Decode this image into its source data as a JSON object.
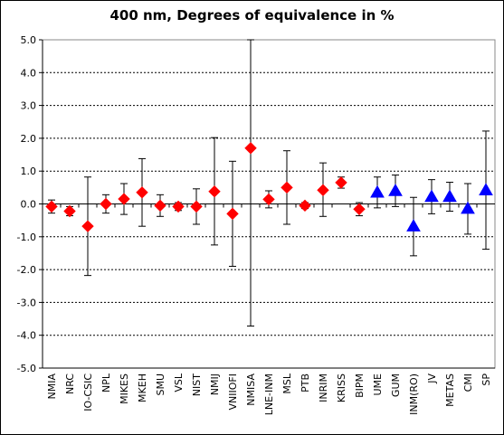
{
  "chart_data": {
    "type": "scatter",
    "title": "400 nm, Degrees of equivalence in %",
    "xlabel": "",
    "ylabel": "",
    "ylim": [
      -5.0,
      5.0
    ],
    "y_ticks": [
      "5.0",
      "4.0",
      "3.0",
      "2.0",
      "1.0",
      "0.0",
      "-1.0",
      "-2.0",
      "-3.0",
      "-4.0",
      "-5.0"
    ],
    "grid": "horizontal dashed",
    "legend": "none",
    "categories": [
      "NMIA",
      "NRC",
      "IO-CSIC",
      "NPL",
      "MIKES",
      "MKEH",
      "SMU",
      "VSL",
      "NIST",
      "NMIJ",
      "VNIIOFI",
      "NMISA",
      "LNE-INM",
      "MSL",
      "PTB",
      "INRIM",
      "KRISS",
      "BIPM",
      "UME",
      "GUM",
      "INM(RO)",
      "JV",
      "METAS",
      "CMI",
      "SP"
    ],
    "series": [
      {
        "marker": "diamond",
        "color": "#ff0000",
        "points": [
          {
            "x": "NMIA",
            "y": -0.08,
            "low": -0.28,
            "high": 0.12
          },
          {
            "x": "NRC",
            "y": -0.22,
            "low": -0.36,
            "high": -0.08
          },
          {
            "x": "IO-CSIC",
            "y": -0.68,
            "low": -2.18,
            "high": 0.82
          },
          {
            "x": "NPL",
            "y": 0.0,
            "low": -0.28,
            "high": 0.28
          },
          {
            "x": "MIKES",
            "y": 0.15,
            "low": -0.32,
            "high": 0.62
          },
          {
            "x": "MKEH",
            "y": 0.35,
            "low": -0.68,
            "high": 1.38
          },
          {
            "x": "SMU",
            "y": -0.05,
            "low": -0.38,
            "high": 0.28
          },
          {
            "x": "VSL",
            "y": -0.08,
            "low": -0.2,
            "high": 0.04
          },
          {
            "x": "NIST",
            "y": -0.08,
            "low": -0.62,
            "high": 0.46
          },
          {
            "x": "NMIJ",
            "y": 0.38,
            "low": -1.25,
            "high": 2.02
          },
          {
            "x": "VNIIOFI",
            "y": -0.3,
            "low": -1.9,
            "high": 1.3
          },
          {
            "x": "NMISA",
            "y": 1.7,
            "low": -3.72,
            "high": 5.0
          },
          {
            "x": "LNE-INM",
            "y": 0.14,
            "low": -0.12,
            "high": 0.4
          },
          {
            "x": "MSL",
            "y": 0.5,
            "low": -0.62,
            "high": 1.62
          },
          {
            "x": "PTB",
            "y": -0.05,
            "low": -0.14,
            "high": 0.04
          },
          {
            "x": "INRIM",
            "y": 0.42,
            "low": -0.38,
            "high": 1.25
          },
          {
            "x": "KRISS",
            "y": 0.65,
            "low": 0.48,
            "high": 0.82
          },
          {
            "x": "BIPM",
            "y": -0.16,
            "low": -0.36,
            "high": 0.04
          }
        ]
      },
      {
        "marker": "triangle",
        "color": "#0000ff",
        "points": [
          {
            "x": "UME",
            "y": 0.35,
            "low": -0.12,
            "high": 0.82
          },
          {
            "x": "GUM",
            "y": 0.4,
            "low": -0.08,
            "high": 0.88
          },
          {
            "x": "INM(RO)",
            "y": -0.68,
            "low": -1.58,
            "high": 0.2
          },
          {
            "x": "JV",
            "y": 0.22,
            "low": -0.3,
            "high": 0.74
          },
          {
            "x": "METAS",
            "y": 0.22,
            "low": -0.22,
            "high": 0.66
          },
          {
            "x": "CMI",
            "y": -0.14,
            "low": -0.92,
            "high": 0.62
          },
          {
            "x": "SP",
            "y": 0.42,
            "low": -1.38,
            "high": 2.22
          }
        ]
      }
    ]
  }
}
